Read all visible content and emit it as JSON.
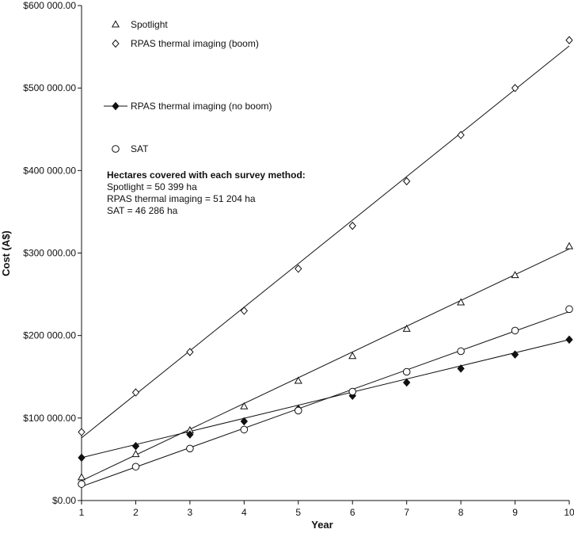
{
  "chart_data": {
    "type": "scatter",
    "xlabel": "Year",
    "ylabel": "Cost (A$)",
    "xlim": [
      1,
      10
    ],
    "ylim": [
      0,
      600000
    ],
    "x_ticks": [
      1,
      2,
      3,
      4,
      5,
      6,
      7,
      8,
      9,
      10
    ],
    "y_ticks": [
      0,
      100000,
      200000,
      300000,
      400000,
      500000,
      600000
    ],
    "y_tick_labels": [
      "$0.00",
      "$100 000.00",
      "$200 000.00",
      "$300 000.00",
      "$400 000.00",
      "$500 000.00",
      "$600 000.00"
    ],
    "grid": false,
    "legend_position": "top-left",
    "series": [
      {
        "name": "Spotlight",
        "marker": "triangle-open",
        "x": [
          1,
          2,
          3,
          4,
          5,
          6,
          7,
          8,
          9,
          10
        ],
        "values": [
          28000,
          56000,
          85000,
          114000,
          145000,
          175000,
          208000,
          240000,
          273000,
          308000
        ],
        "trend": [
          24000,
          305000
        ]
      },
      {
        "name": "RPAS thermal imaging (boom)",
        "marker": "diamond-open",
        "x": [
          1,
          2,
          3,
          4,
          5,
          6,
          7,
          8,
          9,
          10
        ],
        "values": [
          83000,
          131000,
          180000,
          230000,
          281000,
          333000,
          387000,
          443000,
          500000,
          558000
        ],
        "trend": [
          76000,
          551000
        ]
      },
      {
        "name": "RPAS thermal imaging (no boom)",
        "marker": "diamond-filled",
        "x": [
          1,
          2,
          3,
          4,
          5,
          6,
          7,
          8,
          9,
          10
        ],
        "values": [
          52000,
          66000,
          80000,
          96000,
          111000,
          127000,
          143000,
          160000,
          177000,
          195000
        ],
        "trend": [
          52000,
          195000
        ]
      },
      {
        "name": "SAT",
        "marker": "circle-open",
        "x": [
          1,
          2,
          3,
          4,
          5,
          6,
          7,
          8,
          9,
          10
        ],
        "values": [
          20000,
          41000,
          63000,
          86000,
          109000,
          132000,
          156000,
          181000,
          206000,
          232000
        ],
        "trend": [
          17000,
          229000
        ]
      }
    ],
    "annotation": {
      "title": "Hectares covered with each survey method:",
      "lines": [
        "Spotlight = 50 399 ha",
        "RPAS thermal imaging = 51 204 ha",
        "SAT = 46 286 ha"
      ]
    }
  }
}
